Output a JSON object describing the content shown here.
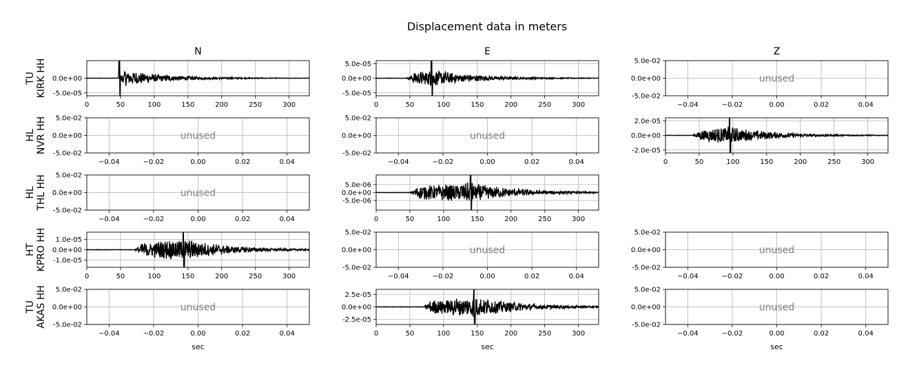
{
  "title": "Displacement data in meters",
  "chart_data": {
    "type": "line",
    "title": "Displacement data in meters",
    "columns": [
      "N",
      "E",
      "Z"
    ],
    "rows": [
      {
        "label_line1": "TU",
        "label_line2": "KIRK HH"
      },
      {
        "label_line1": "HL",
        "label_line2": "NVR HH"
      },
      {
        "label_line1": "HL",
        "label_line2": "THL HH"
      },
      {
        "label_line1": "HT",
        "label_line2": "KPRO HH"
      },
      {
        "label_line1": "TU",
        "label_line2": "AKAS HH"
      }
    ],
    "xlabel": "sec",
    "unused_text": "unused",
    "unused_axis": {
      "xlim": [
        -0.05,
        0.05
      ],
      "xticks": [
        -0.04,
        -0.02,
        0.0,
        0.02,
        0.04
      ],
      "xtick_labels": [
        "−0.04",
        "−0.02",
        "0.00",
        "0.02",
        "0.04"
      ],
      "ylim": [
        -0.05,
        0.05
      ],
      "yticks": [
        -0.05,
        0.0,
        0.05
      ],
      "ytick_labels": [
        "-5.0e-02",
        "0.0e+00",
        "5.0e-02"
      ]
    },
    "trace_axis": {
      "xlim": [
        0,
        330
      ],
      "xticks": [
        0,
        50,
        100,
        150,
        200,
        250,
        300
      ],
      "xtick_labels": [
        "0",
        "50",
        "100",
        "150",
        "200",
        "250",
        "300"
      ]
    },
    "panels": [
      {
        "row": 0,
        "col": 0,
        "used": true,
        "onset_s": 45,
        "peak_s": 48,
        "ylim": [
          -6e-05,
          6e-05
        ],
        "yticks": [
          -5e-05,
          0.0
        ],
        "ytick_labels": [
          "-5.0e-05",
          "0.0e+00"
        ],
        "amplitude": 3.2e-05
      },
      {
        "row": 0,
        "col": 1,
        "used": true,
        "onset_s": 45,
        "peak_s": 82,
        "ylim": [
          -6e-05,
          6e-05
        ],
        "yticks": [
          -5e-05,
          0.0,
          5e-05
        ],
        "ytick_labels": [
          "-5.0e-05",
          "0.0e+00",
          "5.0e-05"
        ],
        "amplitude": 3e-05
      },
      {
        "row": 0,
        "col": 2,
        "used": false
      },
      {
        "row": 1,
        "col": 0,
        "used": false
      },
      {
        "row": 1,
        "col": 1,
        "used": false
      },
      {
        "row": 1,
        "col": 2,
        "used": true,
        "onset_s": 40,
        "peak_s": 95,
        "ylim": [
          -2.4e-05,
          2.4e-05
        ],
        "yticks": [
          -2e-05,
          0.0,
          2e-05
        ],
        "ytick_labels": [
          "-2.0e-05",
          "0.0e+00",
          "2.0e-05"
        ],
        "amplitude": 1.2e-05
      },
      {
        "row": 2,
        "col": 0,
        "used": false
      },
      {
        "row": 2,
        "col": 1,
        "used": true,
        "onset_s": 50,
        "peak_s": 140,
        "ylim": [
          -1.1e-05,
          1.1e-05
        ],
        "yticks": [
          -5e-06,
          0.0,
          5e-06
        ],
        "ytick_labels": [
          "-5.0e-06",
          "0.0e+00",
          "5.0e-06"
        ],
        "amplitude": 6.5e-06
      },
      {
        "row": 3,
        "col": 0,
        "used": true,
        "onset_s": 70,
        "peak_s": 143,
        "ylim": [
          -1.7e-05,
          1.7e-05
        ],
        "yticks": [
          -1e-05,
          0.0,
          1e-05
        ],
        "ytick_labels": [
          "-1.0e-05",
          "0.0e+00",
          "1.0e-05"
        ],
        "amplitude": 1.1e-05
      },
      {
        "row": 3,
        "col": 1,
        "used": false
      },
      {
        "row": 3,
        "col": 2,
        "used": false
      },
      {
        "row": 4,
        "col": 0,
        "used": false
      },
      {
        "row": 4,
        "col": 1,
        "used": true,
        "onset_s": 70,
        "peak_s": 145,
        "ylim": [
          -3.5e-05,
          3.5e-05
        ],
        "yticks": [
          -2.5e-05,
          0.0,
          2.5e-05
        ],
        "ytick_labels": [
          "-2.5e-05",
          "0.0e+00",
          "2.5e-05"
        ],
        "amplitude": 2.2e-05
      },
      {
        "row": 4,
        "col": 2,
        "used": false
      }
    ]
  }
}
